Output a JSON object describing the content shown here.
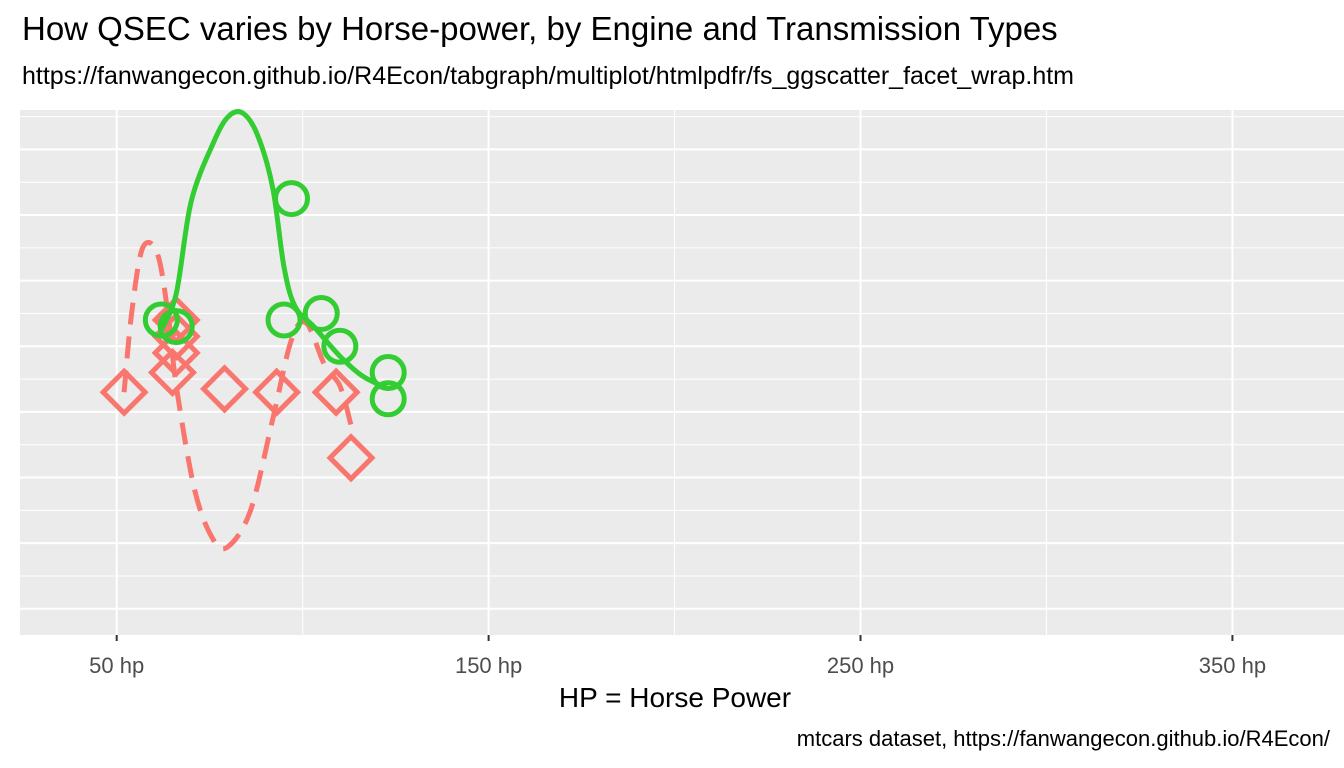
{
  "chart_data": {
    "type": "scatter",
    "title": "How QSEC varies by Horse-power, by Engine and Transmission Types",
    "subtitle": "https://fanwangecon.github.io/R4Econ/tabgraph/multiplot/htmlpdfr/fs_ggscatter_facet_wrap.htm",
    "xlabel": "HP = Horse Power",
    "ylabel": "",
    "caption": "mtcars dataset, https://fanwangecon.github.io/R4Econ/",
    "xlim": [
      24,
      380
    ],
    "ylim": [
      0,
      8
    ],
    "x_ticks": [
      {
        "value": 50,
        "label": "50 hp"
      },
      {
        "value": 150,
        "label": "150 hp"
      },
      {
        "value": 250,
        "label": "250 hp"
      },
      {
        "value": 350,
        "label": "350 hp"
      }
    ],
    "x_minor_ticks": [
      100,
      200,
      300
    ],
    "y_grid": [
      0.4,
      1.4,
      2.4,
      3.4,
      4.4,
      5.4,
      6.4,
      7.4
    ],
    "y_minor_grid": [
      0.9,
      1.9,
      2.9,
      3.9,
      4.9,
      5.9,
      6.9,
      7.9
    ],
    "background": "#ebebeb",
    "grid_color": "#ffffff",
    "series": [
      {
        "color": "#f8766d",
        "marker": "diamond",
        "line_style": "dashed",
        "points": [
          [
            52,
            3.7
          ],
          [
            66,
            4.8
          ],
          [
            66,
            4.55
          ],
          [
            66,
            4.3
          ],
          [
            65,
            4.0
          ],
          [
            79,
            3.75
          ],
          [
            93,
            3.7
          ],
          [
            109,
            3.7
          ],
          [
            113,
            2.7
          ]
        ],
        "smooth": [
          [
            52,
            3.7
          ],
          [
            54,
            4.9
          ],
          [
            57,
            5.9
          ],
          [
            61,
            5.8
          ],
          [
            64,
            4.8
          ],
          [
            66,
            3.8
          ],
          [
            71,
            2.2
          ],
          [
            76,
            1.45
          ],
          [
            80,
            1.35
          ],
          [
            86,
            1.9
          ],
          [
            92,
            3.3
          ],
          [
            97,
            4.5
          ],
          [
            101,
            4.75
          ],
          [
            106,
            4.1
          ],
          [
            110,
            3.8
          ],
          [
            113,
            3.2
          ]
        ]
      },
      {
        "color": "#33cc33",
        "marker": "circle",
        "line_style": "solid",
        "points": [
          [
            62,
            4.8
          ],
          [
            66,
            4.7
          ],
          [
            97,
            6.65
          ],
          [
            95,
            4.8
          ],
          [
            105,
            4.9
          ],
          [
            110,
            4.4
          ],
          [
            123,
            4.0
          ],
          [
            123,
            3.6
          ]
        ],
        "smooth": [
          [
            62,
            4.65
          ],
          [
            66,
            5.2
          ],
          [
            70,
            6.6
          ],
          [
            76,
            7.5
          ],
          [
            80,
            7.9
          ],
          [
            84,
            7.95
          ],
          [
            88,
            7.6
          ],
          [
            92,
            6.8
          ],
          [
            95,
            5.6
          ],
          [
            98,
            5.0
          ],
          [
            103,
            4.7
          ],
          [
            110,
            4.25
          ],
          [
            116,
            3.95
          ],
          [
            123,
            3.75
          ]
        ]
      }
    ]
  }
}
